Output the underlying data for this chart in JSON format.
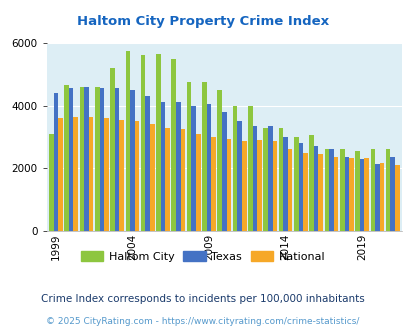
{
  "title": "Haltom City Property Crime Index",
  "years": [
    1999,
    2000,
    2001,
    2002,
    2003,
    2004,
    2005,
    2006,
    2007,
    2008,
    2009,
    2010,
    2011,
    2012,
    2013,
    2014,
    2015,
    2016,
    2017,
    2018,
    2019,
    2020,
    2021
  ],
  "haltom_city": [
    3100,
    4650,
    4600,
    4600,
    5200,
    5750,
    5600,
    5650,
    5500,
    4750,
    4750,
    4500,
    3980,
    4000,
    3300,
    3300,
    3000,
    3050,
    2600,
    2600,
    2550,
    2600,
    2600
  ],
  "texas": [
    4400,
    4550,
    4600,
    4550,
    4550,
    4500,
    4300,
    4100,
    4100,
    4000,
    4050,
    3800,
    3500,
    3350,
    3350,
    3000,
    2800,
    2700,
    2600,
    2350,
    2300,
    2150,
    2350
  ],
  "national": [
    3600,
    3650,
    3650,
    3600,
    3550,
    3500,
    3400,
    3300,
    3250,
    3100,
    3000,
    2950,
    2870,
    2900,
    2870,
    2600,
    2500,
    2450,
    2360,
    2340,
    2320,
    2160,
    2100
  ],
  "haltom_color": "#8dc63f",
  "texas_color": "#4472c4",
  "national_color": "#f6a828",
  "bg_color": "#ddeef5",
  "ylim": [
    0,
    6000
  ],
  "yticks": [
    0,
    2000,
    4000,
    6000
  ],
  "xlabel_ticks": [
    1999,
    2004,
    2009,
    2014,
    2019
  ],
  "subtitle": "Crime Index corresponds to incidents per 100,000 inhabitants",
  "footer": "© 2025 CityRating.com - https://www.cityrating.com/crime-statistics/",
  "legend_labels": [
    "Haltom City",
    "Texas",
    "National"
  ],
  "title_color": "#1565c0",
  "subtitle_color": "#1a3a6b",
  "footer_color": "#5599cc"
}
